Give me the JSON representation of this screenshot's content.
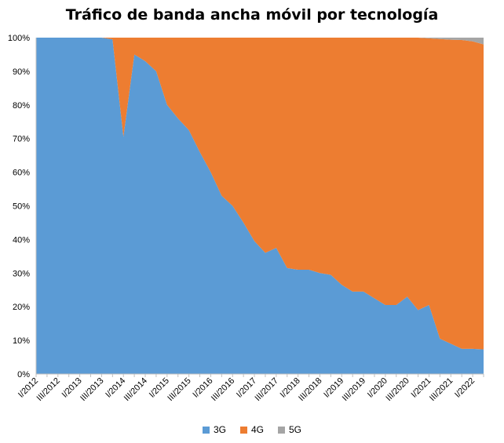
{
  "chart_data": {
    "type": "area",
    "stacking": "percent",
    "title": "Tráfico de banda ancha móvil por tecnología",
    "xlabel": "",
    "ylabel": "",
    "ylim": [
      0,
      100
    ],
    "y_ticks": [
      "0%",
      "10%",
      "20%",
      "30%",
      "40%",
      "50%",
      "60%",
      "70%",
      "80%",
      "90%",
      "100%"
    ],
    "x_tick_labels": [
      "I/2012",
      "III/2012",
      "I/2013",
      "III/2013",
      "I/2014",
      "III/2014",
      "I/2015",
      "III/2015",
      "I/2016",
      "III/2016",
      "I/2017",
      "III/2017",
      "I/2018",
      "III/2018",
      "I/2019",
      "III/2019",
      "I/2020",
      "III/2020",
      "I/2021",
      "III/2021",
      "I/2022"
    ],
    "x": [
      "I/2012",
      "II/2012",
      "III/2012",
      "IV/2012",
      "I/2013",
      "II/2013",
      "III/2013",
      "IV/2013",
      "I/2014",
      "II/2014",
      "III/2014",
      "IV/2014",
      "I/2015",
      "II/2015",
      "III/2015",
      "IV/2015",
      "I/2016",
      "II/2016",
      "III/2016",
      "IV/2016",
      "I/2017",
      "II/2017",
      "III/2017",
      "IV/2017",
      "I/2018",
      "II/2018",
      "III/2018",
      "IV/2018",
      "I/2019",
      "II/2019",
      "III/2019",
      "IV/2019",
      "I/2020",
      "II/2020",
      "III/2020",
      "IV/2020",
      "I/2021",
      "II/2021",
      "III/2021",
      "IV/2021",
      "I/2022",
      "II/2022"
    ],
    "series": [
      {
        "name": "3G",
        "color": "#5b9bd5",
        "values": [
          100,
          100,
          100,
          100,
          100,
          100,
          100,
          99.5,
          70.5,
          95,
          93,
          90,
          80,
          76,
          72.5,
          66,
          60,
          53,
          50,
          45,
          39.5,
          36,
          37.5,
          31.5,
          31,
          31,
          30,
          29.5,
          26.5,
          24.5,
          24.5,
          22.5,
          20.5,
          20.5,
          23,
          19,
          20.5,
          10.5,
          9,
          7.5,
          7.5,
          7.3
        ]
      },
      {
        "name": "4G",
        "color": "#ed7d31",
        "values": [
          0,
          0,
          0,
          0,
          0,
          0,
          0,
          0.5,
          29.5,
          5,
          7,
          10,
          20,
          24,
          27.5,
          34,
          40,
          47,
          50,
          55,
          60.5,
          64,
          62.5,
          68.5,
          69,
          69,
          70,
          70.5,
          73.5,
          75.5,
          75.5,
          77.5,
          79.5,
          79.5,
          77,
          81,
          79.3,
          89.1,
          90.4,
          91.8,
          91.4,
          90.7
        ]
      },
      {
        "name": "5G",
        "color": "#a5a5a5",
        "values": [
          0,
          0,
          0,
          0,
          0,
          0,
          0,
          0,
          0,
          0,
          0,
          0,
          0,
          0,
          0,
          0,
          0,
          0,
          0,
          0,
          0,
          0,
          0,
          0,
          0,
          0,
          0,
          0,
          0,
          0,
          0,
          0,
          0,
          0,
          0,
          0,
          0.2,
          0.4,
          0.6,
          0.7,
          1.1,
          2.0
        ]
      }
    ],
    "grid": false,
    "legend_position": "bottom"
  }
}
